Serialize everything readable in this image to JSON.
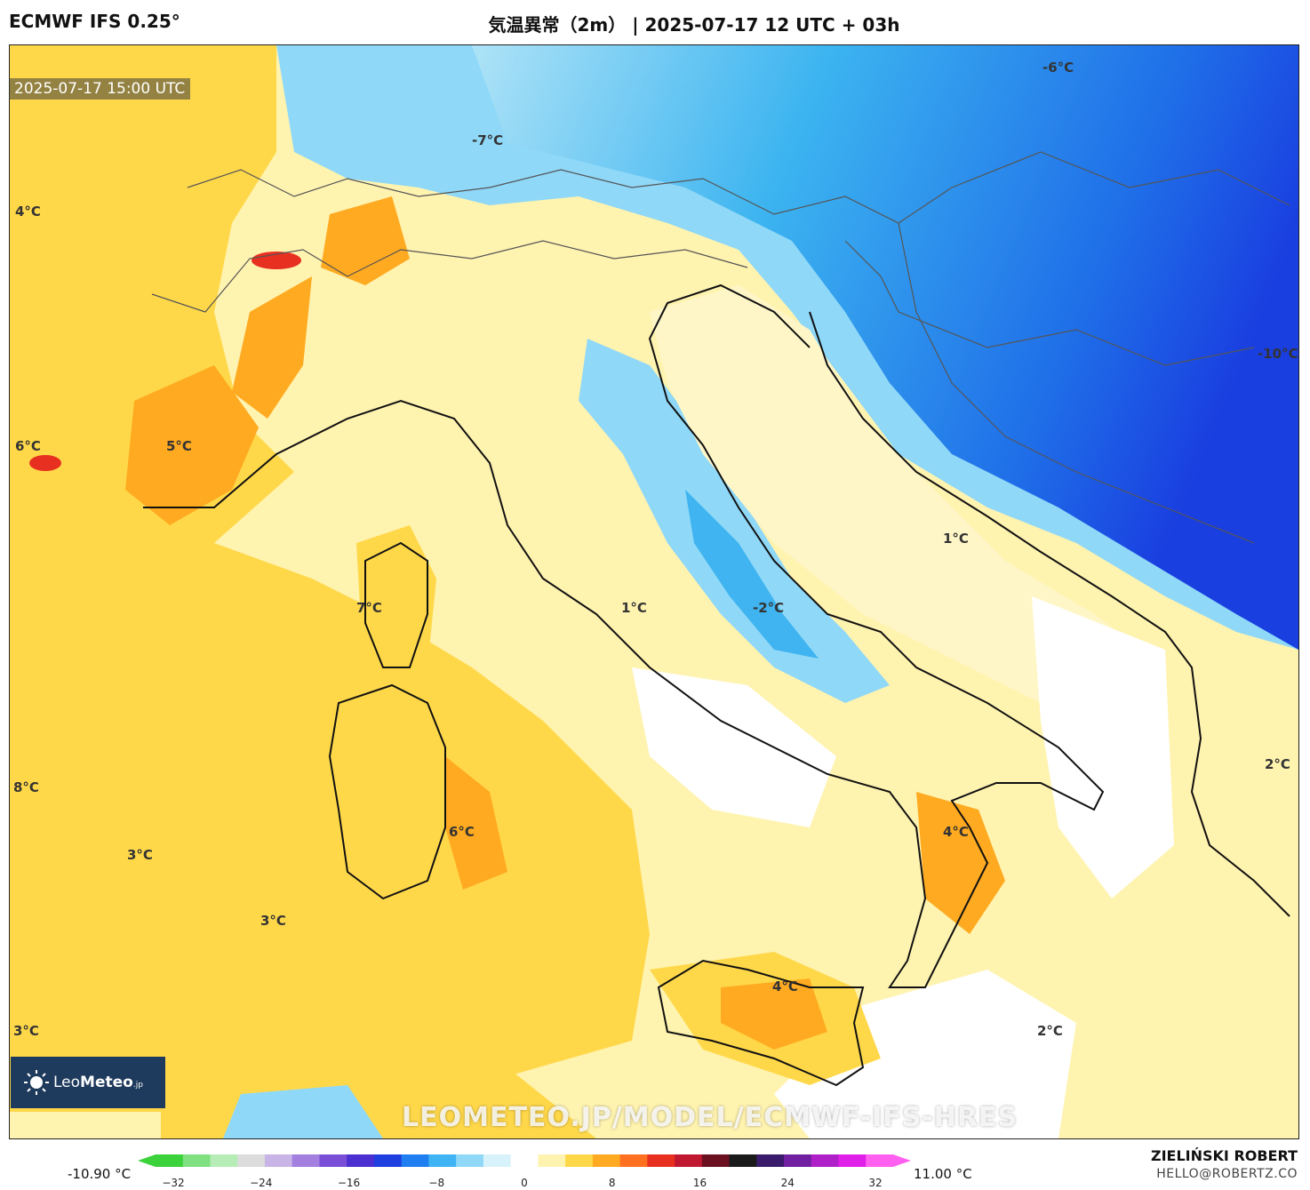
{
  "header": {
    "model": "ECMWF IFS 0.25°",
    "title": "気温異常（2m） | 2025-07-17 12 UTC + 03h"
  },
  "map": {
    "timestamp": "2025-07-17 15:00 UTC",
    "labels": [
      "-6°C",
      "-7°C",
      "4°C",
      "-10°C",
      "6°C",
      "5°C",
      "1°C",
      "7°C",
      "1°C",
      "-2°C",
      "2°C",
      "8°C",
      "6°C",
      "4°C",
      "3°C",
      "3°C",
      "4°C",
      "3°C",
      "2°C"
    ],
    "watermark": "LEOMETEO.JP/MODEL/ECMWF-IFS-HRES",
    "logo": {
      "name": "LeoMeteo",
      "prefix": "Leo",
      "suffix": "Meteo",
      "tld": ".jp"
    }
  },
  "colorbar": {
    "min_label": "-10.90 °C",
    "max_label": "11.00 °C",
    "ticks": [
      "−32",
      "−24",
      "−16",
      "−8",
      "0",
      "8",
      "16",
      "24",
      "32"
    ],
    "colors": [
      "#3bd23b",
      "#7fe07f",
      "#b6ecb6",
      "#dcdcdc",
      "#c8b4e6",
      "#a37fe0",
      "#7a4fd8",
      "#4b2fd0",
      "#1f3fe0",
      "#1f7ff0",
      "#3fb4f5",
      "#8fd8f8",
      "#d8f2fb",
      "#ffffff",
      "#fff3b0",
      "#ffd84a",
      "#ffaa20",
      "#ff7020",
      "#e83020",
      "#c01830",
      "#6a1020",
      "#1a1a1a",
      "#3a1a6a",
      "#7020a0",
      "#b020c8",
      "#e020e8",
      "#ff60f0"
    ]
  },
  "credits": {
    "author": "ZIELIŃSKI ROBERT",
    "email": "HELLO@ROBERTZ.CO"
  }
}
